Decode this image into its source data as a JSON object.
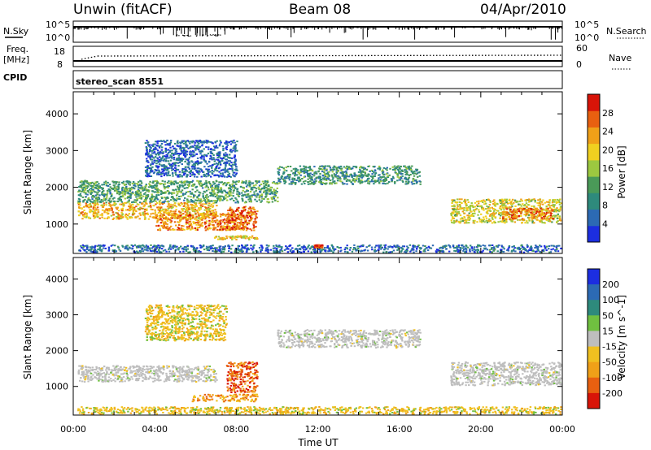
{
  "header": {
    "title": "Unwin (fitACF)",
    "beam": "Beam 08",
    "date": "04/Apr/2010"
  },
  "noise_panel": {
    "left_label": "N.Sky",
    "left_ticks": [
      "10^5",
      "10^0"
    ],
    "right_ticks": [
      "10^5",
      "10^0"
    ],
    "right_label": "N.Search"
  },
  "freq_panel": {
    "left_label_1": "Freq.",
    "left_label_2": "[MHz]",
    "left_ticks": [
      "18",
      "8"
    ],
    "right_ticks": [
      "60",
      "0"
    ],
    "right_label": "Nave"
  },
  "cpid_panel": {
    "label": "CPID",
    "text": "stereo_scan 8551"
  },
  "chart_data": [
    {
      "type": "heatmap",
      "name": "power",
      "ylabel": "Slant Range [km]",
      "xlabel": "",
      "xlim_hours": [
        0,
        24
      ],
      "ylim": [
        200,
        4600
      ],
      "y_ticks": [
        "1000",
        "2000",
        "3000",
        "4000"
      ],
      "x_ticks": [
        "00:00",
        "04:00",
        "08:00",
        "12:00",
        "16:00",
        "20:00",
        "00:00"
      ],
      "colorbar": {
        "label": "Power [dB]",
        "min": 0,
        "max": 32,
        "ticks": [
          "4",
          "8",
          "12",
          "16",
          "20",
          "24",
          "28"
        ],
        "colors": [
          "#1c2ee0",
          "#2c6ab4",
          "#2e8a7c",
          "#4a9a58",
          "#9cc840",
          "#f0d020",
          "#f0a018",
          "#e86010",
          "#d81408"
        ]
      },
      "echo_regions": [
        {
          "x_hours": [
            0.2,
            7.0
          ],
          "y_km": [
            1150,
            1600
          ],
          "level": 0.7
        },
        {
          "x_hours": [
            4.0,
            8.5
          ],
          "y_km": [
            850,
            1300
          ],
          "level": 0.8
        },
        {
          "x_hours": [
            7.5,
            9.0
          ],
          "y_km": [
            850,
            1500
          ],
          "level": 0.85
        },
        {
          "x_hours": [
            6.8,
            9.0
          ],
          "y_km": [
            600,
            700
          ],
          "level": 0.65
        },
        {
          "x_hours": [
            0.2,
            10.0
          ],
          "y_km": [
            1600,
            2200
          ],
          "level": 0.35
        },
        {
          "x_hours": [
            3.5,
            8.0
          ],
          "y_km": [
            2300,
            3300
          ],
          "level": 0.12
        },
        {
          "x_hours": [
            10.0,
            17.0
          ],
          "y_km": [
            2100,
            2600
          ],
          "level": 0.3
        },
        {
          "x_hours": [
            18.5,
            23.9
          ],
          "y_km": [
            1050,
            1700
          ],
          "level": 0.6
        },
        {
          "x_hours": [
            21.0,
            23.5
          ],
          "y_km": [
            1150,
            1450
          ],
          "level": 0.85
        },
        {
          "x_hours": [
            0.2,
            23.9
          ],
          "y_km": [
            250,
            450
          ],
          "level": 0.15
        },
        {
          "x_hours": [
            11.8,
            12.2
          ],
          "y_km": [
            380,
            450
          ],
          "level": 0.95
        }
      ]
    },
    {
      "type": "heatmap",
      "name": "velocity",
      "ylabel": "Slant Range [km]",
      "xlabel": "Time UT",
      "xlim_hours": [
        0,
        24
      ],
      "ylim": [
        200,
        4600
      ],
      "y_ticks": [
        "1000",
        "2000",
        "3000",
        "4000"
      ],
      "x_ticks": [
        "00:00",
        "04:00",
        "08:00",
        "12:00",
        "16:00",
        "20:00",
        "00:00"
      ],
      "colorbar": {
        "label": "Velocity [m s^-1]",
        "ticks": [
          "200",
          "100",
          "50",
          "15",
          "-15",
          "-50",
          "-100",
          "-200"
        ],
        "colors": [
          "#1c2ee0",
          "#2c6ab4",
          "#2e8a7c",
          "#70c040",
          "#bebebe",
          "#f0c020",
          "#f0a018",
          "#e86010",
          "#d81408"
        ]
      },
      "echo_regions": [
        {
          "x_hours": [
            0.2,
            7.0
          ],
          "y_km": [
            1150,
            1600
          ],
          "value": "-15..15"
        },
        {
          "x_hours": [
            7.5,
            9.0
          ],
          "y_km": [
            850,
            1700
          ],
          "value": "-200..-50"
        },
        {
          "x_hours": [
            5.8,
            9.0
          ],
          "y_km": [
            600,
            800
          ],
          "value": "-100..-50"
        },
        {
          "x_hours": [
            10.0,
            17.0
          ],
          "y_km": [
            2100,
            2600
          ],
          "value": "-15..15"
        },
        {
          "x_hours": [
            18.5,
            23.9
          ],
          "y_km": [
            1050,
            1700
          ],
          "value": "-15..15"
        },
        {
          "x_hours": [
            3.5,
            7.5
          ],
          "y_km": [
            2300,
            3300
          ],
          "value": "-50..-15"
        },
        {
          "x_hours": [
            0.2,
            23.9
          ],
          "y_km": [
            250,
            450
          ],
          "value": "-50..-15"
        }
      ]
    }
  ]
}
